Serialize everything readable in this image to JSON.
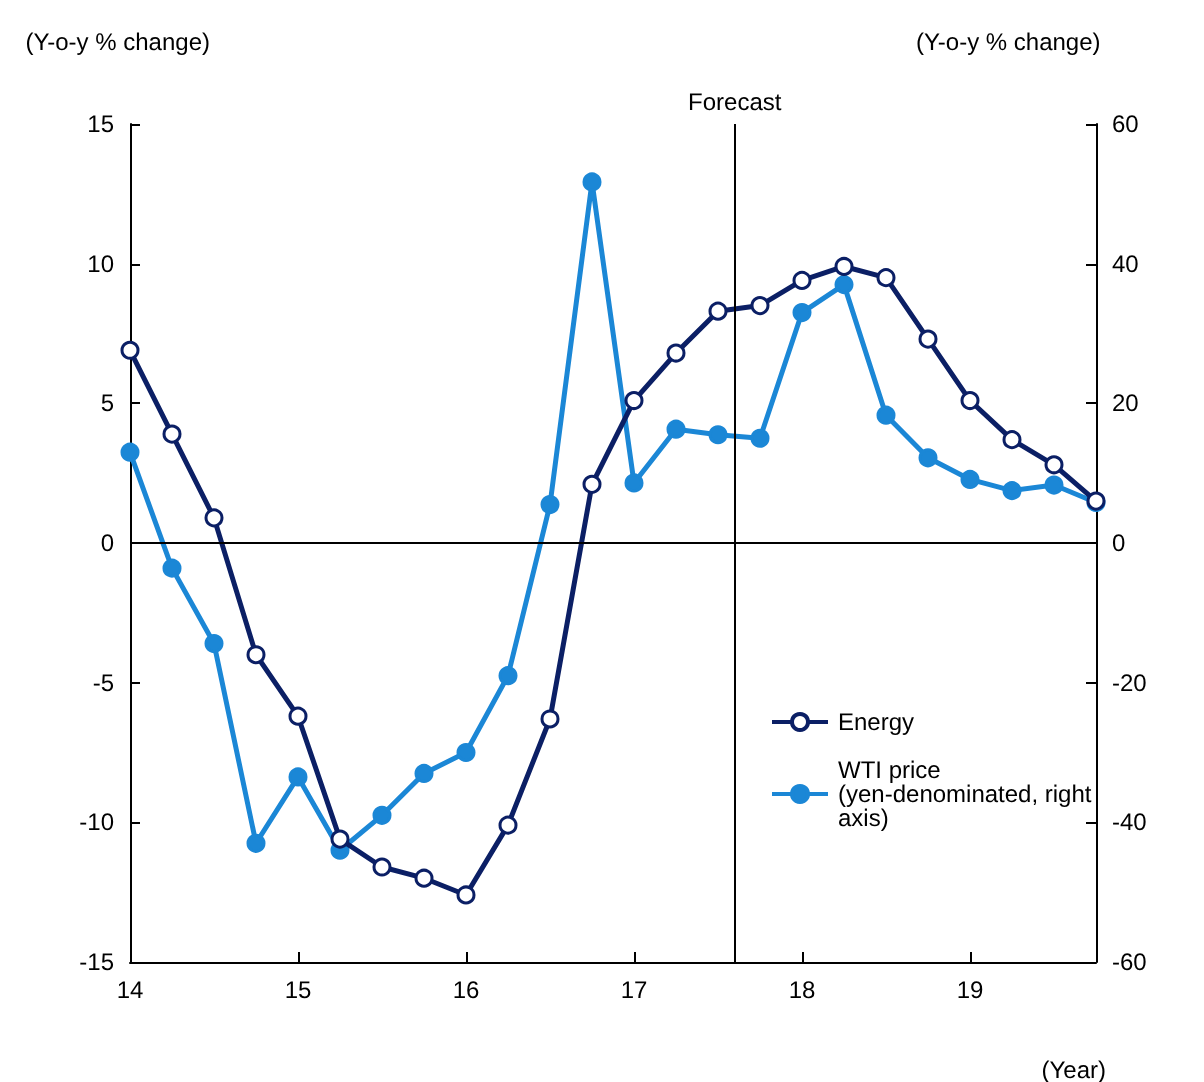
{
  "chart_data": {
    "type": "line",
    "ylabel": "(Y-o-y % change)",
    "y2label": "(Y-o-y % change)",
    "xlabel": "(Year)",
    "x": [
      14,
      14.25,
      14.5,
      14.75,
      15,
      15.25,
      15.5,
      15.75,
      16,
      16.25,
      16.5,
      16.75,
      17,
      17.25,
      17.5,
      17.75,
      18,
      18.25,
      18.5,
      18.75,
      19,
      19.25,
      19.5,
      19.75
    ],
    "series": [
      {
        "name": "Energy",
        "color": "#0b1f65",
        "marker": "circle",
        "values": [
          6.9,
          3.9,
          0.9,
          -4.0,
          -6.2,
          -10.6,
          -11.6,
          -12.0,
          -12.6,
          -10.1,
          -6.3,
          2.1,
          5.1,
          6.8,
          8.3,
          8.5,
          9.4,
          9.9,
          9.5,
          7.3,
          5.1,
          3.7,
          2.8,
          1.5
        ]
      },
      {
        "name": "WTI price (yen-denominated, right axis)",
        "color": "#1b87d6",
        "axis": "y2",
        "marker": "circle",
        "values": [
          13,
          -3.6,
          -14.4,
          -43,
          -33.5,
          -44,
          -39,
          -33,
          -30,
          -19,
          5.5,
          51.7,
          8.6,
          16.3,
          15.5,
          15,
          33,
          37,
          18.3,
          12.2,
          9.1,
          7.5,
          8.3,
          5.8
        ]
      }
    ],
    "xlim": [
      14,
      19.75
    ],
    "xticks": [
      14,
      15,
      16,
      17,
      18,
      19
    ],
    "ylim": [
      -15,
      15
    ],
    "yticks": [
      -15,
      -10,
      -5,
      0,
      5,
      10,
      15
    ],
    "y2lim": [
      -60,
      60
    ],
    "y2ticks": [
      -60,
      -40,
      -20,
      0,
      20,
      40,
      60
    ],
    "ref_lines": [
      {
        "axis": "y",
        "value": 0
      },
      {
        "axis": "x",
        "value": 17.6,
        "label": "Forecast"
      }
    ],
    "grid": false,
    "legend": "right",
    "line_style": "solid"
  }
}
